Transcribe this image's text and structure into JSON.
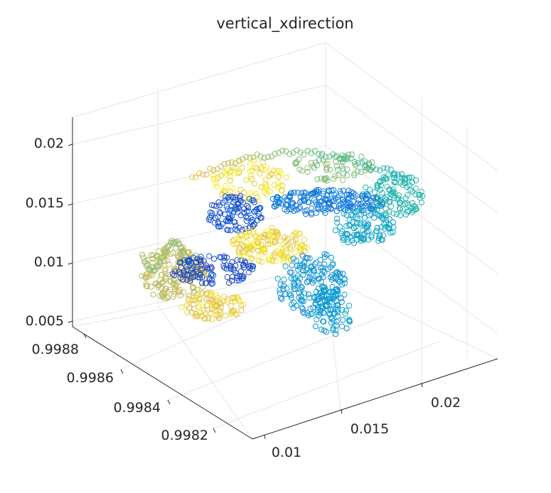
{
  "chart_data": {
    "type": "scatter",
    "title": "vertical_xdirection",
    "projection": "3d",
    "grid": true,
    "marker": "open-circle",
    "colormap": "parula",
    "axes": {
      "x": {
        "ticks": [
          "0.01",
          "0.015",
          "0.02"
        ],
        "lim": [
          0.008,
          0.024
        ]
      },
      "y": {
        "ticks": [
          "0.9988",
          "0.9986",
          "0.9984",
          "0.9982"
        ],
        "lim": [
          0.99805,
          0.99888
        ]
      },
      "z": {
        "ticks": [
          "0.005",
          "0.01",
          "0.015",
          "0.02"
        ],
        "lim": [
          0.0045,
          0.022
        ]
      }
    },
    "point_cloud_summary": {
      "approx_points": 2000,
      "x_range": [
        0.006,
        0.023
      ],
      "y_range": [
        0.9981,
        0.9988
      ],
      "z_range": [
        0.006,
        0.018
      ]
    }
  }
}
